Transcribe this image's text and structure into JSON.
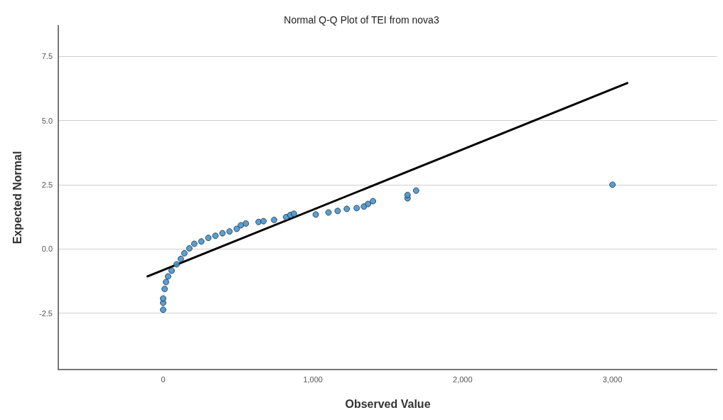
{
  "chart_data": {
    "type": "scatter",
    "title": "Normal Q-Q Plot of TEI from nova3",
    "xlabel": "Observed Value",
    "ylabel": "Expected Normal",
    "xlim": [
      -700,
      3700
    ],
    "xticks": [
      0,
      {
        "value": 1000,
        "label": "1,000"
      },
      {
        "value": 2000,
        "label": "2,000"
      },
      {
        "value": 3000,
        "label": "3,000"
      }
    ],
    "ylim": [
      -4.7,
      8.7
    ],
    "yticks": [
      -2.5,
      {
        "value": 0,
        "label": "0.0"
      },
      2.5,
      {
        "value": 5,
        "label": "5.0"
      },
      7.5
    ],
    "grid": "y",
    "marker": "circle",
    "series": [
      {
        "color": "#4a93c9",
        "x": [
          0,
          0,
          0,
          10,
          19,
          33,
          57,
          90,
          118,
          142,
          175,
          208,
          255,
          302,
          349,
          396,
          443,
          491,
          519,
          552,
          637,
          670,
          741,
          821,
          849,
          873,
          1019,
          1104,
          1165,
          1226,
          1292,
          1340,
          1368,
          1401,
          1632,
          1632,
          1689,
          3000
        ],
        "values": [
          -2.37,
          -2.1,
          -1.93,
          -1.56,
          -1.29,
          -1.07,
          -0.85,
          -0.6,
          -0.39,
          -0.17,
          0.02,
          0.2,
          0.29,
          0.43,
          0.51,
          0.61,
          0.68,
          0.78,
          0.92,
          0.99,
          1.05,
          1.08,
          1.13,
          1.24,
          1.32,
          1.37,
          1.34,
          1.42,
          1.48,
          1.56,
          1.59,
          1.65,
          1.75,
          1.86,
          1.97,
          2.1,
          2.27,
          2.5
        ]
      },
      {
        "type": "line",
        "color": "#000000",
        "marker": "none",
        "line_style": "solid",
        "x": [
          -104,
          3099
        ],
        "values": [
          -1.07,
          6.46
        ]
      }
    ]
  }
}
